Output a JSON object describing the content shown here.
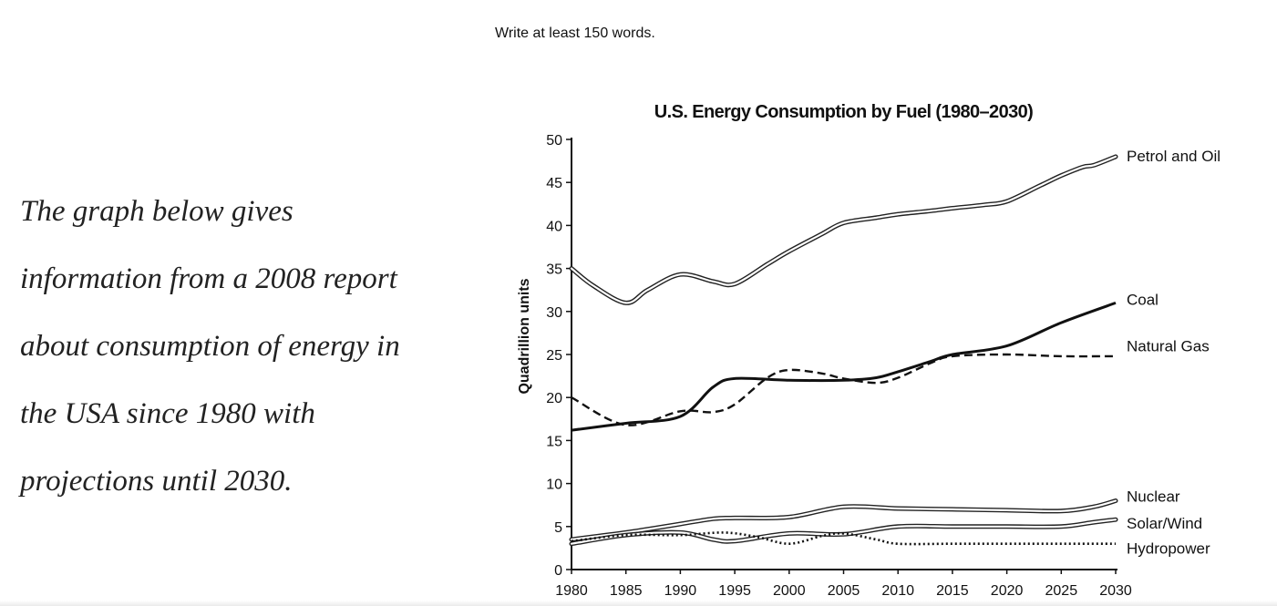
{
  "instruction": "Write at least 150 words.",
  "prompt_lines": [
    "The graph below gives",
    "information from a 2008 report",
    "about consumption of energy in",
    "the USA since 1980 with",
    "projections until 2030."
  ],
  "chart_data": {
    "type": "line",
    "title": "U.S. Energy Consumption by Fuel (1980–2030)",
    "xlabel": "",
    "ylabel": "Quadrillion units",
    "xlim": [
      1980,
      2030
    ],
    "ylim": [
      0,
      50
    ],
    "x_ticks": [
      1980,
      1985,
      1990,
      1995,
      2000,
      2005,
      2010,
      2015,
      2020,
      2025,
      2030
    ],
    "y_ticks": [
      0,
      5,
      10,
      15,
      20,
      25,
      30,
      35,
      40,
      45,
      50
    ],
    "grid": false,
    "legend": "labels at right end of each line",
    "series": [
      {
        "name": "Petrol and Oil",
        "style": "double",
        "x": [
          1980,
          1982,
          1985,
          1987,
          1990,
          1993,
          1995,
          1998,
          2000,
          2003,
          2005,
          2008,
          2010,
          2013,
          2015,
          2018,
          2020,
          2023,
          2025,
          2027,
          2028,
          2030
        ],
        "y": [
          35,
          33,
          31,
          32.5,
          34.3,
          33.5,
          33.2,
          35.5,
          37,
          39,
          40.3,
          40.9,
          41.3,
          41.7,
          42,
          42.4,
          42.8,
          44.6,
          45.8,
          46.8,
          47,
          48
        ]
      },
      {
        "name": "Coal",
        "style": "solid",
        "x": [
          1980,
          1985,
          1990,
          1993,
          1995,
          2000,
          2005,
          2008,
          2010,
          2013,
          2015,
          2020,
          2025,
          2030
        ],
        "y": [
          16.2,
          17,
          17.8,
          21.2,
          22.2,
          22,
          22,
          22.3,
          23,
          24.2,
          25,
          26,
          28.7,
          31
        ]
      },
      {
        "name": "Natural Gas",
        "style": "dashed",
        "x": [
          1980,
          1985,
          1990,
          1993,
          1995,
          1998,
          2000,
          2003,
          2005,
          2008,
          2010,
          2013,
          2015,
          2020,
          2025,
          2030
        ],
        "y": [
          20,
          16.8,
          18.4,
          18.3,
          19.2,
          22.3,
          23.2,
          22.8,
          22.2,
          21.7,
          22.3,
          24,
          24.8,
          25,
          24.8,
          24.8
        ]
      },
      {
        "name": "Nuclear",
        "style": "double",
        "x": [
          1980,
          1985,
          1990,
          1993,
          1995,
          2000,
          2005,
          2010,
          2015,
          2020,
          2025,
          2028,
          2030
        ],
        "y": [
          3.5,
          4.3,
          5.3,
          5.9,
          6,
          6.1,
          7.3,
          7.1,
          7,
          6.9,
          6.8,
          7.3,
          8
        ]
      },
      {
        "name": "Solar/Wind",
        "style": "double",
        "x": [
          1980,
          1985,
          1990,
          1993,
          1995,
          2000,
          2005,
          2010,
          2015,
          2020,
          2025,
          2028,
          2030
        ],
        "y": [
          3,
          4,
          4.3,
          3.5,
          3.3,
          4.2,
          4.1,
          5,
          5,
          5,
          5,
          5.5,
          5.8
        ]
      },
      {
        "name": "Hydropower",
        "style": "dotted",
        "x": [
          1980,
          1985,
          1990,
          1994,
          1997,
          2000,
          2003,
          2005,
          2008,
          2010,
          2015,
          2020,
          2025,
          2030
        ],
        "y": [
          3.3,
          4,
          4,
          4.3,
          3.8,
          3,
          3.9,
          4.2,
          3.5,
          3,
          3,
          3,
          3,
          3
        ]
      }
    ]
  }
}
